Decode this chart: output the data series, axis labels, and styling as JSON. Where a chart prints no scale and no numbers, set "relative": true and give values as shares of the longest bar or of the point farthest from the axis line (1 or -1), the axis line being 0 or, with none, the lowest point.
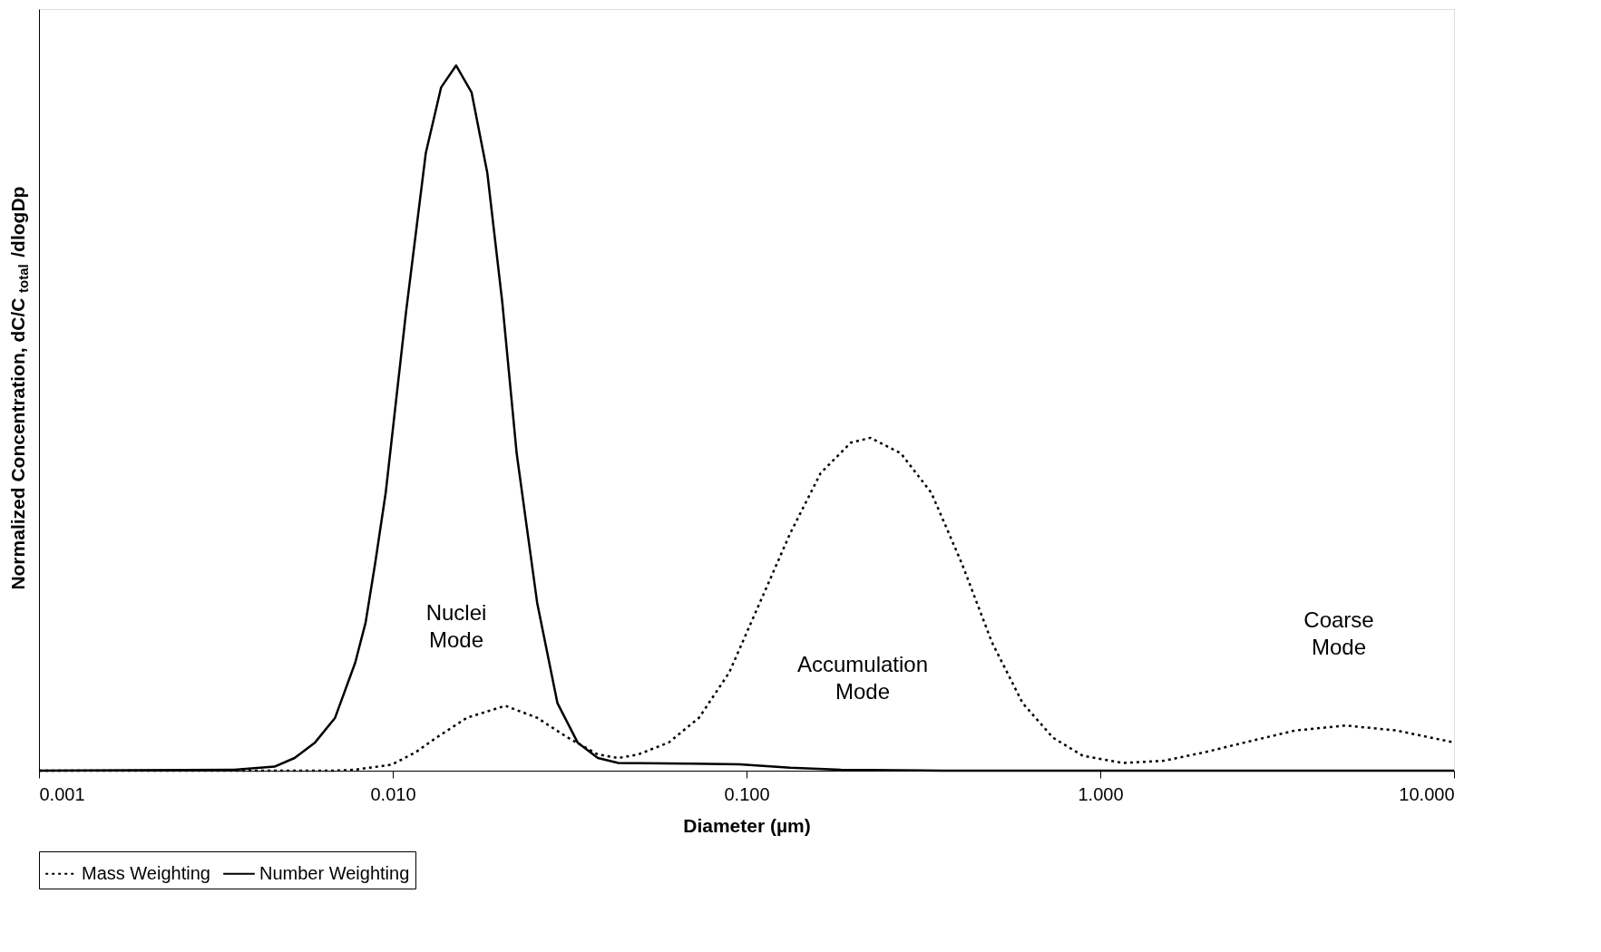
{
  "chart_data": {
    "type": "line",
    "relative": true,
    "log": "x",
    "grid": false,
    "legend": "bottom",
    "marker": "none",
    "xlabel": "Diameter (µm)",
    "ylabel": "Normalized Concentration, dC/C$_{total}$/dlogDp",
    "xlim": [
      0.001,
      10
    ],
    "xticks": [
      0.001,
      {
        "value": 0.01,
        "label": "0.010"
      },
      {
        "value": 0.1,
        "label": "0.100"
      },
      {
        "value": 1,
        "label": "1.000"
      },
      {
        "value": 10,
        "label": "10.000"
      }
    ],
    "annotations": [
      "Nuclei Mode",
      "Accumulation Mode",
      "Coarse Mode"
    ],
    "series": [
      {
        "name": "Mass Weighting",
        "color": "#000000",
        "line_style": "dotted",
        "x": [
          0.001,
          0.00687,
          0.00783,
          0.00993,
          0.0116,
          0.0133,
          0.0162,
          0.0208,
          0.0256,
          0.0312,
          0.038,
          0.0434,
          0.0494,
          0.0603,
          0.0734,
          0.0893,
          0.109,
          0.133,
          0.162,
          0.197,
          0.224,
          0.273,
          0.333,
          0.406,
          0.494,
          0.603,
          0.734,
          0.893,
          1.16,
          1.51,
          1.97,
          2.56,
          3.56,
          4.94,
          6.87,
          10
        ],
        "values": [
          0,
          0,
          0.0014,
          0.0085,
          0.026,
          0.047,
          0.075,
          0.092,
          0.075,
          0.047,
          0.023,
          0.018,
          0.023,
          0.04,
          0.075,
          0.139,
          0.238,
          0.337,
          0.422,
          0.465,
          0.472,
          0.45,
          0.394,
          0.294,
          0.182,
          0.096,
          0.047,
          0.021,
          0.011,
          0.014,
          0.026,
          0.04,
          0.057,
          0.064,
          0.057,
          0.04
        ]
      },
      {
        "name": "Number Weighting",
        "color": "#000000",
        "line_style": "solid",
        "x": [
          0.001,
          0.00356,
          0.00463,
          0.00528,
          0.00603,
          0.00687,
          0.00783,
          0.00838,
          0.00893,
          0.00955,
          0.0109,
          0.0124,
          0.0137,
          0.0151,
          0.0167,
          0.0185,
          0.0204,
          0.0224,
          0.0256,
          0.0292,
          0.0333,
          0.038,
          0.0434,
          0.0687,
          0.0955,
          0.133,
          0.185,
          0.356,
          10
        ],
        "values": [
          0,
          0.0014,
          0.0057,
          0.018,
          0.04,
          0.075,
          0.153,
          0.21,
          0.296,
          0.394,
          0.65,
          0.876,
          0.969,
          1,
          0.962,
          0.848,
          0.664,
          0.45,
          0.238,
          0.096,
          0.04,
          0.018,
          0.011,
          0.01,
          0.009,
          0.0043,
          0.0014,
          0,
          0
        ]
      }
    ]
  }
}
